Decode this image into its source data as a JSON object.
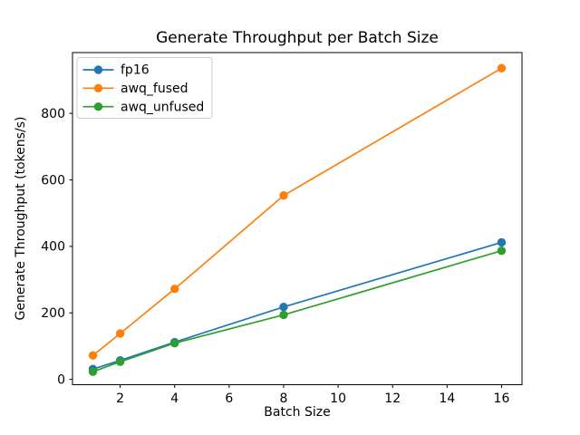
{
  "chart_data": {
    "type": "line",
    "title": "Generate Throughput per Batch Size",
    "xlabel": "Batch Size",
    "ylabel": "Generate Throughput (tokens/s)",
    "x": [
      1,
      2,
      4,
      8,
      16
    ],
    "series": [
      {
        "name": "fp16",
        "color": "#1f77b4",
        "values": [
          31,
          57,
          112,
          218,
          412
        ]
      },
      {
        "name": "awq_fused",
        "color": "#ff7f0e",
        "values": [
          72,
          138,
          272,
          553,
          936
        ]
      },
      {
        "name": "awq_unfused",
        "color": "#2ca02c",
        "values": [
          23,
          53,
          109,
          194,
          387
        ]
      }
    ],
    "xticks": [
      2,
      4,
      6,
      8,
      10,
      12,
      14,
      16
    ],
    "yticks": [
      0,
      200,
      400,
      600,
      800
    ],
    "xlim": [
      0.25,
      16.75
    ],
    "ylim": [
      -16,
      983
    ],
    "grid": false,
    "marker": "o",
    "legend_position": "upper left",
    "background_color": "#ffffff",
    "spine_color": "#000000"
  }
}
